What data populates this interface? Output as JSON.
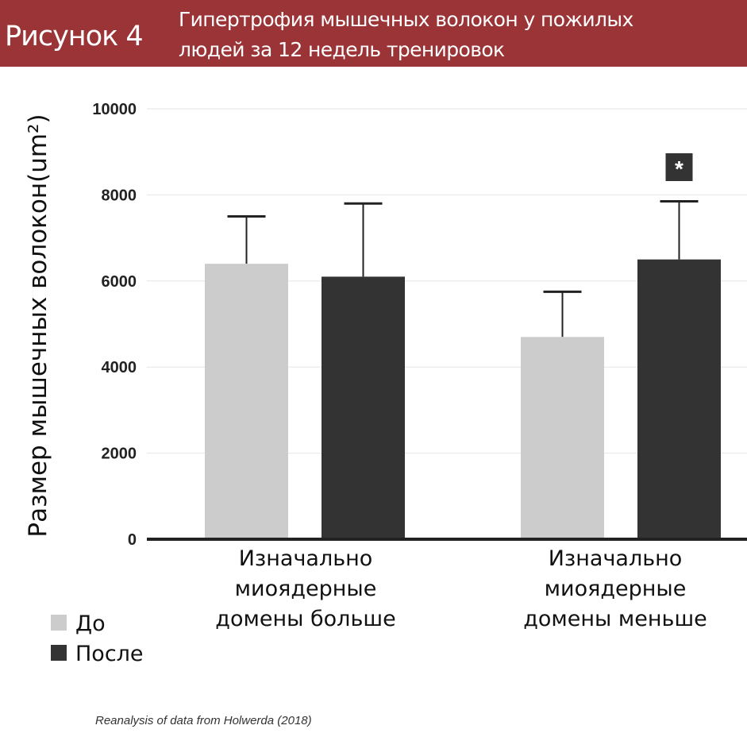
{
  "header": {
    "figure_label": "Рисунок 4",
    "title_line1": "Гипертрофия мышечных волокон у пожилых",
    "title_line2": "людей за 12 недель тренировок",
    "bg_color": "#9b3437"
  },
  "chart_data": {
    "type": "bar",
    "title": "Гипертрофия мышечных волокон у пожилых людей за 12 недель тренировок",
    "ylabel": "Размер мышечных волокон(um²)",
    "xlabel": "",
    "ylim": [
      0,
      10000
    ],
    "yticks": [
      0,
      2000,
      4000,
      6000,
      8000,
      10000
    ],
    "grid": true,
    "categories": [
      [
        "Изначально",
        "миоядерные",
        "домены больше"
      ],
      [
        "Изначально",
        "миоядерные",
        "домены меньше"
      ]
    ],
    "series": [
      {
        "name": "До",
        "color": "#cccccc",
        "values": [
          6400,
          4700
        ],
        "error_upper": [
          7500,
          5750
        ]
      },
      {
        "name": "После",
        "color": "#333333",
        "values": [
          6100,
          6500
        ],
        "error_upper": [
          7800,
          7850
        ]
      }
    ],
    "annotations": [
      {
        "text": "*",
        "category": 1,
        "series": 1
      }
    ],
    "legend_position": "bottom-left",
    "source": "Reanalysis of data from Holwerda (2018)"
  }
}
